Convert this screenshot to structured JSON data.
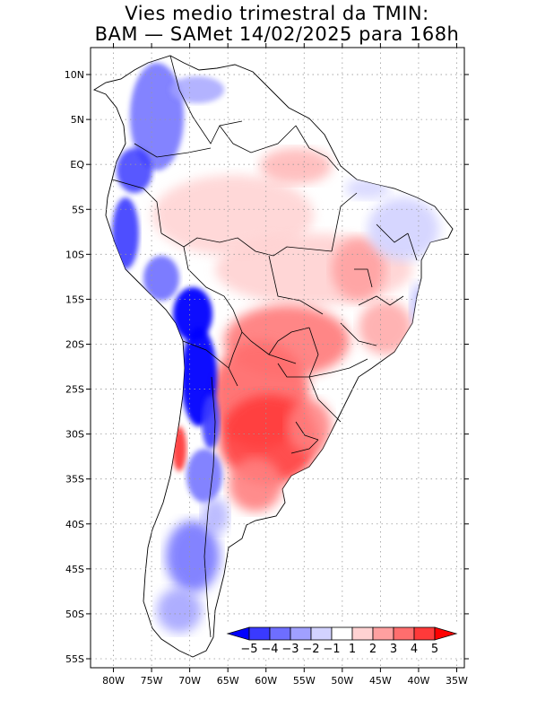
{
  "title_line1": "Vies medio trimestral da TMIN:",
  "title_line2": "BAM — SAMet 14/02/2025  para 168h",
  "axes": {
    "lon_labels": [
      "80W",
      "75W",
      "70W",
      "65W",
      "60W",
      "55W",
      "50W",
      "45W",
      "40W",
      "35W"
    ],
    "lat_labels": [
      "10N",
      "5N",
      "EQ",
      "5S",
      "10S",
      "15S",
      "20S",
      "25S",
      "30S",
      "35S",
      "40S",
      "45S",
      "50S",
      "55S"
    ],
    "lon_range": [
      -83,
      -34
    ],
    "lat_range": [
      13,
      -56
    ],
    "grid": "dotted"
  },
  "legend": {
    "labels": [
      "−5",
      "−4",
      "−3",
      "−2",
      "−1",
      "1",
      "2",
      "3",
      "4",
      "5"
    ],
    "colors": [
      "#0000ff",
      "#3a3aff",
      "#6e6eff",
      "#a0a0ff",
      "#d2d2ff",
      "#ffffff",
      "#ffd2d2",
      "#ffa0a0",
      "#ff6e6e",
      "#ff3a3a",
      "#ff0000"
    ]
  }
}
